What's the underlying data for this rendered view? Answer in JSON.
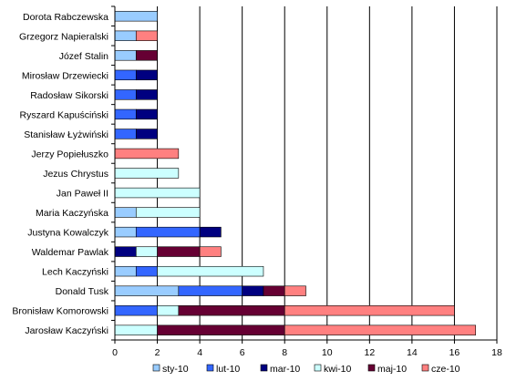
{
  "chart_data": {
    "type": "bar",
    "orientation": "horizontal",
    "stacked": true,
    "categories": [
      "Dorota Rabczewska",
      "Grzegorz Napieralski",
      "Józef Stalin",
      "Mirosław Drzewiecki",
      "Radosław Sikorski",
      "Ryszard Kapuściński",
      "Stanisław Łyżwiński",
      "Jerzy Popiełuszko",
      "Jezus Chrystus",
      "Jan Paweł II",
      "Maria Kaczyńska",
      "Justyna Kowalczyk",
      "Waldemar Pawlak",
      "Lech Kaczyński",
      "Donald Tusk",
      "Bronisław Komorowski",
      "Jarosław Kaczyński"
    ],
    "series": [
      {
        "name": "sty-10",
        "color": "#99ccff",
        "values": [
          2,
          1,
          1,
          0,
          0,
          0,
          0,
          0,
          0,
          0,
          1,
          1,
          0,
          1,
          3,
          0,
          0
        ]
      },
      {
        "name": "lut-10",
        "color": "#3366ff",
        "values": [
          0,
          0,
          0,
          1,
          1,
          1,
          1,
          0,
          0,
          0,
          0,
          3,
          0,
          1,
          3,
          2,
          0
        ]
      },
      {
        "name": "mar-10",
        "color": "#000080",
        "values": [
          0,
          0,
          0,
          1,
          1,
          1,
          1,
          0,
          0,
          0,
          0,
          1,
          1,
          0,
          1,
          0,
          0
        ]
      },
      {
        "name": "kwi-10",
        "color": "#ccffff",
        "values": [
          0,
          0,
          0,
          0,
          0,
          0,
          0,
          0,
          3,
          4,
          3,
          0,
          1,
          5,
          0,
          1,
          2
        ]
      },
      {
        "name": "maj-10",
        "color": "#660033",
        "values": [
          0,
          0,
          1,
          0,
          0,
          0,
          0,
          0,
          0,
          0,
          0,
          0,
          2,
          0,
          1,
          5,
          6
        ]
      },
      {
        "name": "cze-10",
        "color": "#ff8080",
        "values": [
          0,
          1,
          0,
          0,
          0,
          0,
          0,
          3,
          0,
          0,
          0,
          0,
          1,
          0,
          1,
          8,
          9
        ]
      }
    ],
    "xlim": [
      0,
      18
    ],
    "xticks": [
      "0",
      "2",
      "4",
      "6",
      "8",
      "10",
      "12",
      "14",
      "16",
      "18"
    ],
    "grid": "vertical",
    "legend_position": "bottom"
  }
}
